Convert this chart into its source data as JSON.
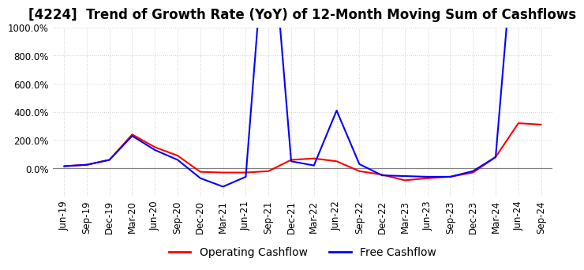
{
  "title": "[4224]  Trend of Growth Rate (YoY) of 12-Month Moving Sum of Cashflows",
  "ylim": [
    -200,
    1000
  ],
  "yticks": [
    0,
    200,
    400,
    600,
    800,
    1000
  ],
  "ytick_labels": [
    "0.0%",
    "200.0%",
    "400.0%",
    "600.0%",
    "800.0%",
    "1000.0%"
  ],
  "legend": [
    {
      "label": "Operating Cashflow",
      "color": "#ff0000"
    },
    {
      "label": "Free Cashflow",
      "color": "#0000ff"
    }
  ],
  "x_labels": [
    "Jun-19",
    "Sep-19",
    "Dec-19",
    "Mar-20",
    "Jun-20",
    "Sep-20",
    "Dec-20",
    "Mar-21",
    "Jun-21",
    "Sep-21",
    "Dec-21",
    "Mar-22",
    "Jun-22",
    "Sep-22",
    "Dec-22",
    "Mar-23",
    "Jun-23",
    "Sep-23",
    "Dec-23",
    "Mar-24",
    "Jun-24",
    "Sep-24"
  ],
  "operating_cashflow": [
    15,
    25,
    60,
    240,
    150,
    90,
    -25,
    -30,
    -30,
    -20,
    60,
    70,
    50,
    -20,
    -45,
    -85,
    -70,
    -60,
    -30,
    80,
    320,
    310
  ],
  "free_cashflow": [
    15,
    25,
    60,
    230,
    130,
    60,
    -70,
    -130,
    -60,
    2000,
    50,
    20,
    410,
    30,
    -50,
    -55,
    -60,
    -60,
    -20,
    80,
    2000,
    1500
  ],
  "background_color": "#ffffff",
  "grid_color": "#d0d0d0",
  "title_fontsize": 12,
  "tick_fontsize": 8.5
}
